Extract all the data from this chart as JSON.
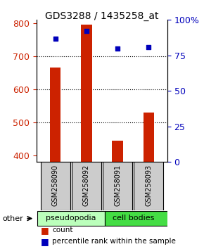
{
  "title": "GDS3288 / 1435258_at",
  "samples": [
    "GSM258090",
    "GSM258092",
    "GSM258091",
    "GSM258093"
  ],
  "groups": [
    "pseudopodia",
    "pseudopodia",
    "cell bodies",
    "cell bodies"
  ],
  "counts": [
    665,
    795,
    445,
    530
  ],
  "percentile_ranks": [
    87,
    92,
    80,
    81
  ],
  "ylim_left": [
    380,
    810
  ],
  "ylim_right": [
    0,
    100
  ],
  "yticks_left": [
    400,
    500,
    600,
    700,
    800
  ],
  "yticks_right": [
    0,
    25,
    50,
    75,
    100
  ],
  "right_tick_labels": [
    "0",
    "25",
    "50",
    "75",
    "100%"
  ],
  "bar_color": "#cc2200",
  "dot_color": "#0000bb",
  "bar_width": 0.35,
  "group_colors": {
    "pseudopodia": "#bbffbb",
    "cell bodies": "#44dd44"
  },
  "label_box_color": "#cccccc",
  "legend_count_label": "count",
  "legend_pct_label": "percentile rank within the sample",
  "other_label": "other",
  "gridline_color": "#000000",
  "axis_color_left": "#cc2200",
  "axis_color_right": "#0000bb",
  "title_fontsize": 10,
  "tick_fontsize": 9,
  "sample_fontsize": 7,
  "group_fontsize": 8,
  "legend_fontsize": 7.5
}
